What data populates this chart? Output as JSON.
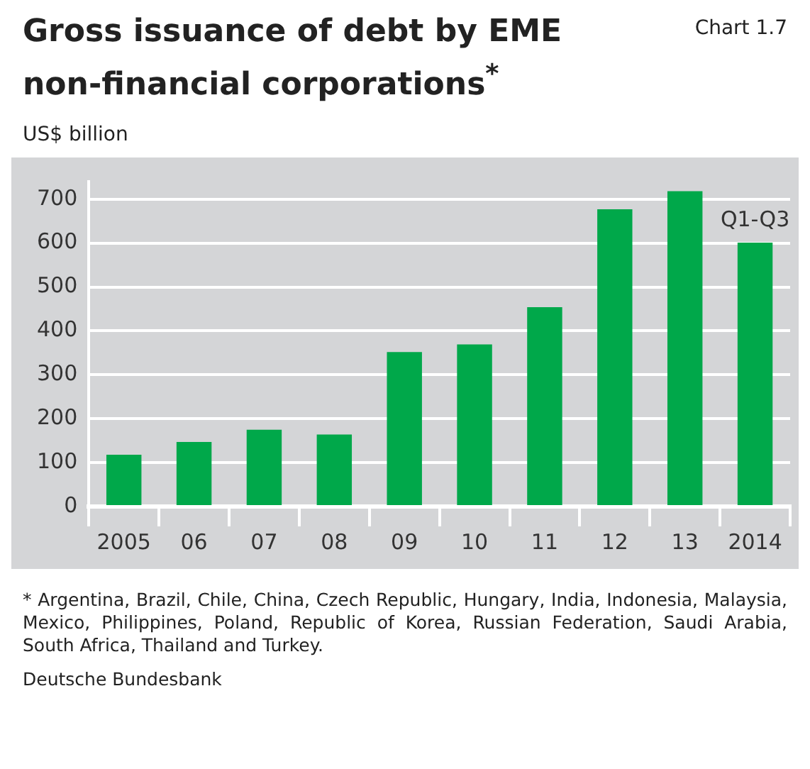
{
  "chart_data": {
    "type": "bar",
    "title": "Gross issuance of debt by EME non-financial corporations$^{*}$",
    "ylabel": "US$ billion",
    "categories": [
      "2005",
      "06",
      "07",
      "08",
      "09",
      "10",
      "11",
      "12",
      "13",
      "2014"
    ],
    "values": [
      118,
      147,
      175,
      164,
      352,
      369,
      454,
      677,
      718,
      601
    ],
    "color": "#00a84a",
    "ylim": [
      0,
      740
    ],
    "yticks": [
      0,
      100,
      200,
      300,
      400,
      500,
      600,
      700
    ],
    "grid": "y",
    "annotations": [
      {
        "text": "Q1-Q3",
        "x": "2014",
        "y": 601
      },
      "Chart 1.7",
      "* Argentina, Brazil, Chile, China, Czech Republic, Hungary, India, Indonesia, Malaysia, Mexico, Philippines, Poland, Republic of Korea, Russian Federation, Saudi Arabia, South Africa, Thailand and Turkey.",
      "Deutsche Bundesbank"
    ]
  }
}
